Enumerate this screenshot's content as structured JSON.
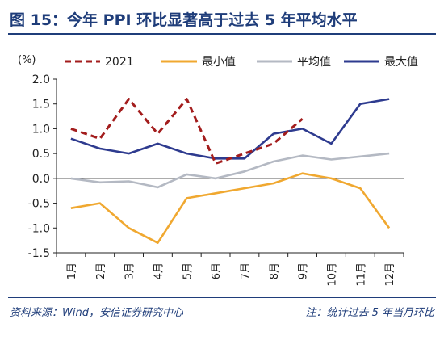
{
  "header": {
    "title": "图 15：今年 PPI 环比显著高于过去 5 年平均水平"
  },
  "footer": {
    "source": "资料来源：Wind，安信证券研究中心",
    "note": "注：统计过去 5 年当月环比"
  },
  "chart_data": {
    "type": "line",
    "ylabel": "(%)",
    "ylim": [
      -1.5,
      2.0
    ],
    "yticks": [
      -1.5,
      -1.0,
      -0.5,
      0.0,
      0.5,
      1.0,
      1.5,
      2.0
    ],
    "ytick_labels": [
      "-1.5",
      "-1.0",
      "-0.5",
      "0.0",
      "0.5",
      "1.0",
      "1.5",
      "2.0"
    ],
    "categories": [
      "1月",
      "2月",
      "3月",
      "4月",
      "5月",
      "6月",
      "7月",
      "8月",
      "9月",
      "10月",
      "11月",
      "12月"
    ],
    "grid": false,
    "legend_position": "top",
    "series": [
      {
        "name": "2021",
        "color": "#a31d1d",
        "style": "dashed",
        "values": [
          1.0,
          0.8,
          1.6,
          0.9,
          1.6,
          0.3,
          0.5,
          0.7,
          1.2,
          null,
          null,
          null
        ]
      },
      {
        "name": "最小值",
        "color": "#f0a830",
        "style": "solid",
        "values": [
          -0.6,
          -0.5,
          -1.0,
          -1.3,
          -0.4,
          -0.3,
          -0.2,
          -0.1,
          0.1,
          0.0,
          -0.2,
          -1.0
        ]
      },
      {
        "name": "平均值",
        "color": "#b4b9c3",
        "style": "solid",
        "values": [
          0.0,
          -0.08,
          -0.06,
          -0.18,
          0.08,
          0.0,
          0.14,
          0.34,
          0.46,
          0.38,
          0.44,
          0.5
        ]
      },
      {
        "name": "最大值",
        "color": "#2e3b8f",
        "style": "solid",
        "values": [
          0.8,
          0.6,
          0.5,
          0.7,
          0.5,
          0.4,
          0.4,
          0.9,
          1.0,
          0.7,
          1.5,
          1.6
        ]
      }
    ]
  }
}
